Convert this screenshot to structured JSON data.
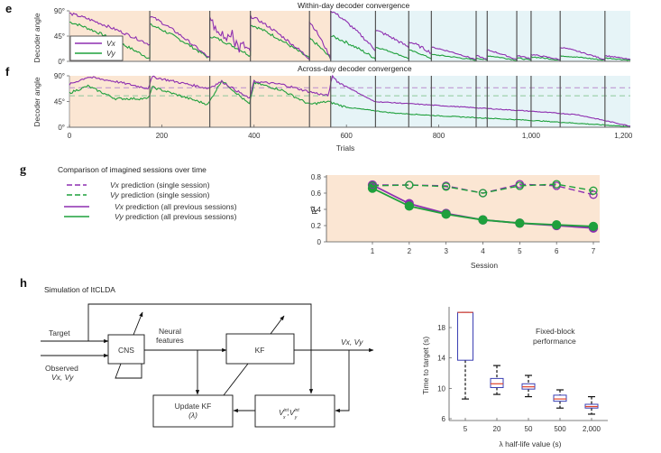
{
  "panels": {
    "e": {
      "letter": "e",
      "title": "Within-day decoder convergence"
    },
    "f": {
      "letter": "f",
      "title": "Across-day decoder convergence"
    },
    "g": {
      "letter": "g",
      "title": "Comparison of imagined sessions over time"
    },
    "h": {
      "letter": "h",
      "title": "Simulation of ItCLDA"
    }
  },
  "colors": {
    "vx": "#8e2fb0",
    "vy": "#1fa03c",
    "vx_dash": "#b98ccd",
    "vy_dash": "#8cc79a",
    "orange_bg": "#fbe6d3",
    "blue_bg": "#e6f4f7",
    "g_bg": "#fbe6d3",
    "box_edge": "#3b3fb3",
    "median": "#e0432b"
  },
  "chart_data": [
    {
      "id": "e",
      "type": "line",
      "title": "Within-day decoder convergence",
      "ylabel": "Decoder angle",
      "xlabel": "",
      "ylim": [
        0,
        90
      ],
      "xlim": [
        0,
        1215
      ],
      "yticks": [
        "0°",
        "45°",
        "90°"
      ],
      "yticks_values": [
        0,
        45,
        90
      ],
      "legend": [
        {
          "name": "Vx"
        },
        {
          "name": "Vy"
        }
      ],
      "legend_position": "bottom-left",
      "session_boundaries": [
        0,
        174,
        304,
        392,
        520,
        566,
        663,
        735,
        784,
        881,
        905,
        969,
        1000,
        1063,
        1160,
        1215
      ],
      "shading": [
        {
          "from": 0,
          "to": 566,
          "color": "orange"
        },
        {
          "from": 566,
          "to": 1215,
          "color": "blue"
        }
      ],
      "segments_vx": [
        [
          85,
          30
        ],
        [
          80,
          5
        ],
        [
          70,
          10
        ],
        [
          80,
          5
        ],
        [
          70,
          5
        ],
        [
          90,
          20
        ],
        [
          55,
          25
        ],
        [
          35,
          15
        ],
        [
          25,
          3
        ],
        [
          10,
          3
        ],
        [
          20,
          3
        ],
        [
          10,
          5
        ],
        [
          12,
          3
        ],
        [
          25,
          3
        ],
        [
          10,
          3
        ]
      ],
      "segments_vy": [
        [
          70,
          5
        ],
        [
          65,
          5
        ],
        [
          45,
          10
        ],
        [
          65,
          5
        ],
        [
          40,
          5
        ],
        [
          45,
          5
        ],
        [
          25,
          5
        ],
        [
          20,
          5
        ],
        [
          12,
          2
        ],
        [
          6,
          2
        ],
        [
          10,
          2
        ],
        [
          6,
          2
        ],
        [
          8,
          2
        ],
        [
          10,
          2
        ],
        [
          6,
          2
        ]
      ]
    },
    {
      "id": "f",
      "type": "line",
      "title": "Across-day decoder convergence",
      "ylabel": "Decoder angle",
      "xlabel": "Trials",
      "ylim": [
        0,
        90
      ],
      "xlim": [
        0,
        1215
      ],
      "xticks": [
        "0",
        "200",
        "400",
        "600",
        "800",
        "1,000",
        "1,200"
      ],
      "xticks_values": [
        0,
        200,
        400,
        600,
        800,
        1000,
        1200
      ],
      "yticks": [
        "0°",
        "45°",
        "90°"
      ],
      "yticks_values": [
        0,
        45,
        90
      ],
      "reference_lines": [
        {
          "series": "Vx",
          "value": 69,
          "style": "dashed"
        },
        {
          "series": "Vy",
          "value": 55,
          "style": "dashed"
        }
      ],
      "vx_keypoints": [
        [
          0,
          75
        ],
        [
          40,
          88
        ],
        [
          100,
          80
        ],
        [
          170,
          68
        ],
        [
          180,
          88
        ],
        [
          300,
          68
        ],
        [
          330,
          80
        ],
        [
          390,
          50
        ],
        [
          400,
          80
        ],
        [
          460,
          75
        ],
        [
          520,
          62
        ],
        [
          560,
          55
        ],
        [
          570,
          90
        ],
        [
          580,
          80
        ],
        [
          660,
          45
        ],
        [
          800,
          38
        ],
        [
          1000,
          28
        ],
        [
          1100,
          22
        ],
        [
          1215,
          2
        ]
      ],
      "vy_keypoints": [
        [
          0,
          60
        ],
        [
          40,
          72
        ],
        [
          100,
          50
        ],
        [
          170,
          50
        ],
        [
          180,
          70
        ],
        [
          300,
          40
        ],
        [
          330,
          82
        ],
        [
          390,
          40
        ],
        [
          400,
          78
        ],
        [
          460,
          65
        ],
        [
          520,
          40
        ],
        [
          560,
          45
        ],
        [
          600,
          35
        ],
        [
          700,
          25
        ],
        [
          800,
          20
        ],
        [
          1000,
          12
        ],
        [
          1215,
          1
        ]
      ]
    },
    {
      "id": "g",
      "type": "line",
      "title": "Comparison of imagined sessions over time",
      "xlabel": "Session",
      "ylabel": "R²",
      "ylim": [
        0,
        0.8
      ],
      "yticks": [
        "0",
        "0.2",
        "0.4",
        "0.6",
        "0.8"
      ],
      "yticks_values": [
        0,
        0.2,
        0.4,
        0.6,
        0.8
      ],
      "x": [
        1,
        2,
        3,
        4,
        5,
        6,
        7
      ],
      "xticks": [
        "1",
        "2",
        "3",
        "4",
        "5",
        "6",
        "7"
      ],
      "series": [
        {
          "name": "Vx prediction (single session)",
          "color": "vx",
          "style": "dashed",
          "marker": "open",
          "values": [
            0.7,
            0.7,
            0.69,
            0.6,
            0.71,
            0.69,
            0.58
          ]
        },
        {
          "name": "Vy prediction (single session)",
          "color": "vy",
          "style": "dashed",
          "marker": "open",
          "values": [
            0.69,
            0.7,
            0.68,
            0.6,
            0.69,
            0.71,
            0.63
          ]
        },
        {
          "name": "Vx prediction (all previous sessions)",
          "color": "vx",
          "style": "solid",
          "marker": "filled",
          "values": [
            0.7,
            0.47,
            0.35,
            0.27,
            0.23,
            0.2,
            0.17
          ]
        },
        {
          "name": "Vy prediction (all previous sessions)",
          "color": "vy",
          "style": "solid",
          "marker": "filled",
          "values": [
            0.66,
            0.44,
            0.34,
            0.27,
            0.23,
            0.21,
            0.19
          ]
        }
      ],
      "legend_position": "left-outside"
    },
    {
      "id": "h-box",
      "type": "box",
      "title": "Fixed-block performance",
      "xlabel": "λ half-life value (s)",
      "ylabel": "Time to target (s)",
      "ylim": [
        6,
        20
      ],
      "yticks": [
        "6",
        "10",
        "14",
        "18"
      ],
      "yticks_values": [
        6,
        10,
        14,
        18
      ],
      "categories": [
        "5",
        "20",
        "50",
        "500",
        "2,000"
      ],
      "boxes": [
        {
          "whisker_low": 8.6,
          "q1": 13.7,
          "median": 20.0,
          "q3": 20.0,
          "whisker_high": 20.0
        },
        {
          "whisker_low": 9.2,
          "q1": 10.1,
          "median": 10.6,
          "q3": 11.3,
          "whisker_high": 13.0
        },
        {
          "whisker_low": 8.9,
          "q1": 9.9,
          "median": 10.2,
          "q3": 10.6,
          "whisker_high": 11.7
        },
        {
          "whisker_low": 7.4,
          "q1": 8.3,
          "median": 8.6,
          "q3": 9.1,
          "whisker_high": 9.8
        },
        {
          "whisker_low": 6.6,
          "q1": 7.4,
          "median": 7.6,
          "q3": 7.9,
          "whisker_high": 8.9
        }
      ]
    }
  ],
  "diagram": {
    "target_label": "Target",
    "observed_label_1": "Observed",
    "observed_label_2": "Vx, Vy",
    "cns_label": "CNS",
    "neural_label_1": "Neural",
    "neural_label_2": "features",
    "kf_label": "KF",
    "output_label": "Vx, Vy",
    "update_label": "Update KF",
    "update_sub": "(λ)",
    "v_label_1": "V",
    "v_sup_1": "int",
    "v_sub_1": "x",
    "v_label_2": "V",
    "v_sup_2": "int",
    "v_sub_2": "y"
  },
  "legend_g": [
    {
      "label": "Vx prediction (single session)",
      "italic": "Vx",
      "rest": " prediction (single session)"
    },
    {
      "label": "Vy prediction (single session)",
      "italic": "Vy",
      "rest": " prediction (single session)"
    },
    {
      "label": "Vx prediction (all previous sessions)",
      "italic": "Vx",
      "rest": " prediction (all previous sessions)"
    },
    {
      "label": "Vy prediction (all previous sessions)",
      "italic": "Vy",
      "rest": " prediction (all previous sessions)"
    }
  ],
  "legend_e": [
    {
      "name": "Vx"
    },
    {
      "name": "Vy"
    }
  ]
}
